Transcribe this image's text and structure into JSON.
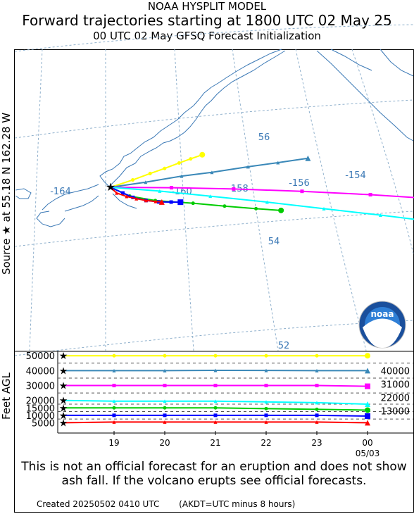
{
  "header": {
    "model": "NOAA HYSPLIT MODEL",
    "title": "Forward trajectories starting at 1800 UTC 02 May 25",
    "subtitle": "00 UTC 02 May     GFSQ  Forecast Initialization"
  },
  "source_label": "Source ★  at    55.18 N  162.28 W",
  "map": {
    "lon_labels": [
      "-164",
      "-160",
      "-158",
      "-156",
      "-154"
    ],
    "lat_labels": [
      "56",
      "54",
      "52"
    ]
  },
  "logo_text": "noaa",
  "height_axis": {
    "ylabel": "Feet AGL",
    "left_ticks": [
      "50000",
      "40000",
      "30000",
      "20000",
      "15000",
      "10000",
      "5000"
    ],
    "right_ticks": [
      "40000",
      "31000",
      "22000",
      "13000"
    ]
  },
  "time_axis": {
    "ticks": [
      "19",
      "20",
      "21",
      "22",
      "23",
      "00"
    ],
    "date_label": "05/03"
  },
  "disclaimer": "This is not an official forecast for an eruption and does not show ash fall. If the volcano erupts see official forecasts.",
  "footer": {
    "created": "Created 20250502 0410 UTC",
    "note": "(AKDT=UTC minus 8 hours)"
  },
  "chart_data": {
    "type": "line",
    "source": {
      "lat": 55.18,
      "lon": -162.28
    },
    "x": [
      "18",
      "19",
      "20",
      "21",
      "22",
      "23",
      "00"
    ],
    "ylim": [
      0,
      52000
    ],
    "series": [
      {
        "color": "#ffff00",
        "marker": "circle",
        "heights_ft": [
          50000,
          50000,
          50000,
          50000,
          50000,
          50000,
          50000
        ],
        "path": [
          [
            55.18,
            -162.28
          ],
          [
            55.35,
            -161.9
          ],
          [
            55.5,
            -161.6
          ],
          [
            55.62,
            -161.35
          ],
          [
            55.75,
            -161.1
          ],
          [
            55.85,
            -160.9
          ],
          [
            55.95,
            -160.7
          ]
        ]
      },
      {
        "color": "#3a88b8",
        "marker": "triangle",
        "heights_ft": [
          40000,
          40000,
          40000,
          40200,
          40100,
          40000,
          40000
        ],
        "path": [
          [
            55.18,
            -162.28
          ],
          [
            55.3,
            -161.7
          ],
          [
            55.45,
            -161.1
          ],
          [
            55.55,
            -160.6
          ],
          [
            55.7,
            -160.0
          ],
          [
            55.82,
            -159.5
          ],
          [
            55.95,
            -159.0
          ]
        ]
      },
      {
        "color": "#ff00ff",
        "marker": "square",
        "heights_ft": [
          30000,
          30000,
          30000,
          30000,
          30000,
          30000,
          29500
        ],
        "path": [
          [
            55.18,
            -162.28
          ],
          [
            55.18,
            -161.3
          ],
          [
            55.18,
            -160.3
          ],
          [
            55.18,
            -159.2
          ],
          [
            55.18,
            -158.1
          ],
          [
            55.18,
            -156.9
          ],
          [
            55.18,
            -155.8
          ]
        ]
      },
      {
        "color": "#00ffff",
        "marker": "triangle",
        "heights_ft": [
          20000,
          19500,
          19500,
          19500,
          19000,
          18500,
          17500
        ],
        "path": [
          [
            55.18,
            -162.28
          ],
          [
            55.1,
            -161.5
          ],
          [
            55.0,
            -160.7
          ],
          [
            54.9,
            -159.8
          ],
          [
            54.8,
            -158.9
          ],
          [
            54.72,
            -158.0
          ],
          [
            54.65,
            -157.2
          ]
        ]
      },
      {
        "color": "#00cc00",
        "marker": "circle",
        "heights_ft": [
          15000,
          15000,
          15000,
          15000,
          14500,
          14000,
          13500
        ],
        "path": [
          [
            55.18,
            -162.28
          ],
          [
            54.98,
            -162.0
          ],
          [
            54.88,
            -161.6
          ],
          [
            54.83,
            -161.0
          ],
          [
            54.78,
            -160.5
          ],
          [
            54.74,
            -160.0
          ],
          [
            54.72,
            -159.6
          ]
        ]
      },
      {
        "color": "#0000ff",
        "marker": "square",
        "heights_ft": [
          10000,
          10000,
          10000,
          10000,
          10000,
          10000,
          9500
        ],
        "path": [
          [
            55.18,
            -162.28
          ],
          [
            55.05,
            -162.1
          ],
          [
            54.95,
            -161.95
          ],
          [
            54.88,
            -161.75
          ],
          [
            54.85,
            -161.55
          ],
          [
            54.85,
            -161.35
          ],
          [
            54.85,
            -161.2
          ]
        ]
      },
      {
        "color": "#ff0000",
        "marker": "triangle",
        "heights_ft": [
          5000,
          5500,
          5500,
          5500,
          5500,
          5500,
          5000
        ],
        "path": [
          [
            55.18,
            -162.28
          ],
          [
            55.05,
            -162.2
          ],
          [
            54.97,
            -162.05
          ],
          [
            54.92,
            -161.9
          ],
          [
            54.88,
            -161.75
          ],
          [
            54.86,
            -161.6
          ],
          [
            54.85,
            -161.5
          ]
        ]
      }
    ]
  }
}
